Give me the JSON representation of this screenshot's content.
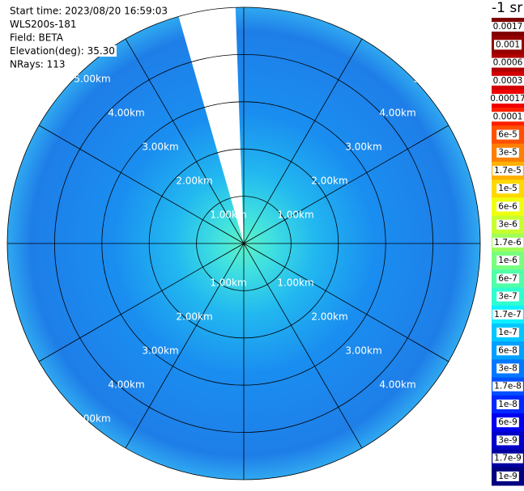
{
  "chart_data": {
    "type": "ppi",
    "info": [
      "Start time: 2023/08/20 16:59:03",
      "WLS200s-181",
      "Field: BETA",
      "Elevation(deg): 35.30",
      "NRays: 113"
    ],
    "unit": "-1 sr",
    "rlim": [
      0,
      5
    ],
    "range_rings": [
      {
        "value": 1,
        "label": "1.00km"
      },
      {
        "value": 2,
        "label": "2.00km"
      },
      {
        "value": 3,
        "label": "3.00km"
      },
      {
        "value": 4,
        "label": "4.00km"
      },
      {
        "value": 5,
        "label": "5.00km"
      }
    ],
    "colorbar": {
      "labels": [
        "0.0017",
        "0.001",
        "0.0006",
        "0.0003",
        "0.00017",
        "0.0001",
        "6e-5",
        "3e-5",
        "1.7e-5",
        "1e-5",
        "6e-6",
        "3e-6",
        "1.7e-6",
        "1e-6",
        "6e-7",
        "3e-7",
        "1.7e-7",
        "1e-7",
        "6e-8",
        "3e-8",
        "1.7e-8",
        "1e-8",
        "6e-9",
        "3e-9",
        "1.7e-9",
        "1e-9"
      ],
      "colors": [
        "#7f0000",
        "#950000",
        "#b00000",
        "#d40000",
        "#f00000",
        "#ff2000",
        "#ff5000",
        "#ff8000",
        "#ffb000",
        "#ffd800",
        "#f0ff10",
        "#c8ff30",
        "#9fff58",
        "#78ff80",
        "#50ffa8",
        "#30ffd0",
        "#10f0ff",
        "#00c8ff",
        "#00a0ff",
        "#0078ff",
        "#0050ff",
        "#0028ff",
        "#0000f0",
        "#0000c8",
        "#0000a0",
        "#000080"
      ]
    }
  }
}
